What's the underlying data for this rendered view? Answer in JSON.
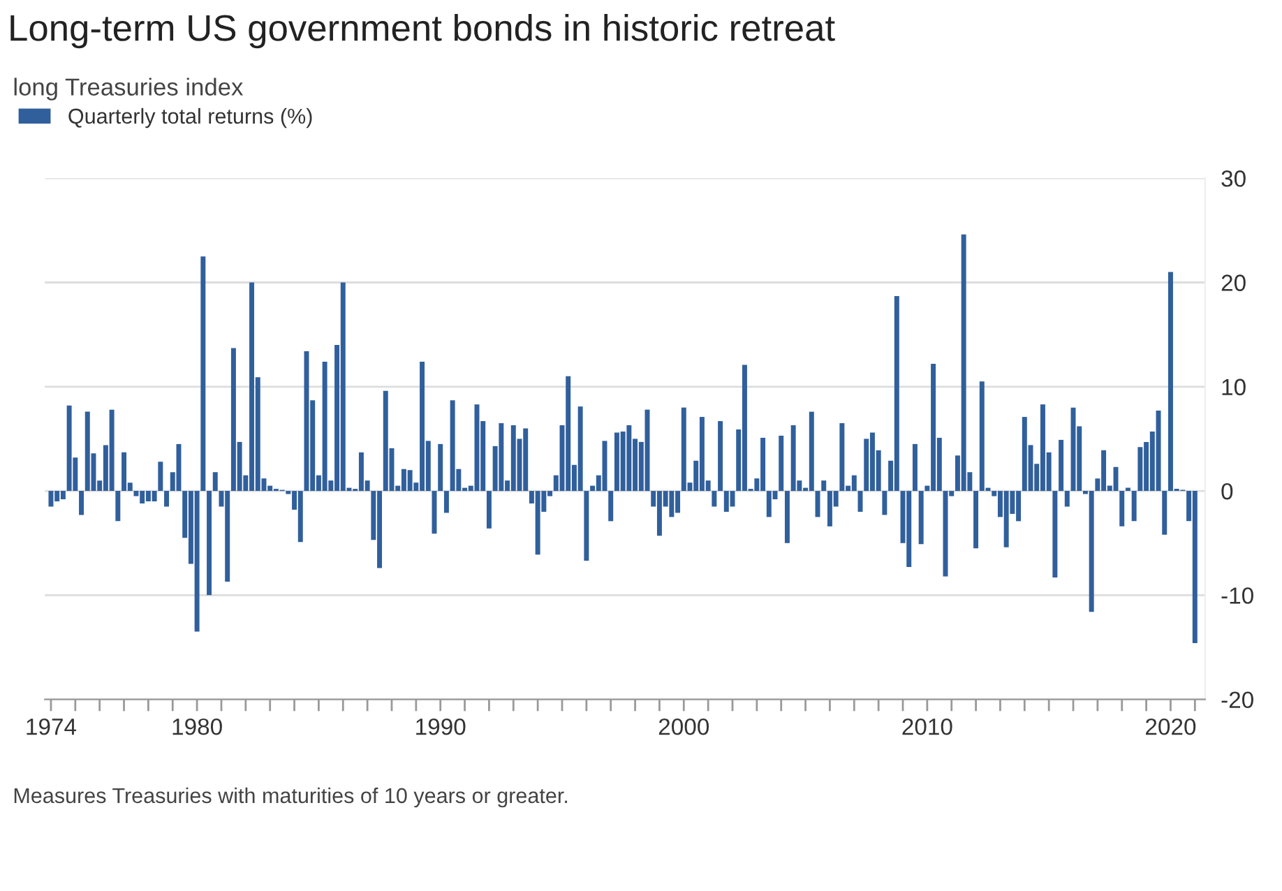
{
  "chart_data": {
    "type": "bar",
    "title": "Long-term US government bonds in historic retreat",
    "subtitle": "long Treasuries index",
    "annotations": [
      "Measures Treasuries with maturities of 10 years or greater."
    ],
    "x": [
      "1974-01",
      "1974-04",
      "1974-07",
      "1974-10",
      "1975-01",
      "1975-04",
      "1975-07",
      "1975-10",
      "1976-01",
      "1976-04",
      "1976-07",
      "1976-10",
      "1977-01",
      "1977-04",
      "1977-07",
      "1977-10",
      "1978-01",
      "1978-04",
      "1978-07",
      "1978-10",
      "1979-01",
      "1979-04",
      "1979-07",
      "1979-10",
      "1980-01",
      "1980-04",
      "1980-07",
      "1980-10",
      "1981-01",
      "1981-04",
      "1981-07",
      "1981-10",
      "1982-01",
      "1982-04",
      "1982-07",
      "1982-10",
      "1983-01",
      "1983-04",
      "1983-07",
      "1983-10",
      "1984-01",
      "1984-04",
      "1984-07",
      "1984-10",
      "1985-01",
      "1985-04",
      "1985-07",
      "1985-10",
      "1986-01",
      "1986-04",
      "1986-07",
      "1986-10",
      "1987-01",
      "1987-04",
      "1987-07",
      "1987-10",
      "1988-01",
      "1988-04",
      "1988-07",
      "1988-10",
      "1989-01",
      "1989-04",
      "1989-07",
      "1989-10",
      "1990-01",
      "1990-04",
      "1990-07",
      "1990-10",
      "1991-01",
      "1991-04",
      "1991-07",
      "1991-10",
      "1992-01",
      "1992-04",
      "1992-07",
      "1992-10",
      "1993-01",
      "1993-04",
      "1993-07",
      "1993-10",
      "1994-01",
      "1994-04",
      "1994-07",
      "1994-10",
      "1995-01",
      "1995-04",
      "1995-07",
      "1995-10",
      "1996-01",
      "1996-04",
      "1996-07",
      "1996-10",
      "1997-01",
      "1997-04",
      "1997-07",
      "1997-10",
      "1998-01",
      "1998-04",
      "1998-07",
      "1998-10",
      "1999-01",
      "1999-04",
      "1999-07",
      "1999-10",
      "2000-01",
      "2000-04",
      "2000-07",
      "2000-10",
      "2001-01",
      "2001-04",
      "2001-07",
      "2001-10",
      "2002-01",
      "2002-04",
      "2002-07",
      "2002-10",
      "2003-01",
      "2003-04",
      "2003-07",
      "2003-10",
      "2004-01",
      "2004-04",
      "2004-07",
      "2004-10",
      "2005-01",
      "2005-04",
      "2005-07",
      "2005-10",
      "2006-01",
      "2006-04",
      "2006-07",
      "2006-10",
      "2007-01",
      "2007-04",
      "2007-07",
      "2007-10",
      "2008-01",
      "2008-04",
      "2008-07",
      "2008-10",
      "2009-01",
      "2009-04",
      "2009-07",
      "2009-10",
      "2010-01",
      "2010-04",
      "2010-07",
      "2010-10",
      "2011-01",
      "2011-04",
      "2011-07",
      "2011-10",
      "2012-01",
      "2012-04",
      "2012-07",
      "2012-10",
      "2013-01",
      "2013-04",
      "2013-07",
      "2013-10",
      "2014-01",
      "2014-04",
      "2014-07",
      "2014-10",
      "2015-01",
      "2015-04",
      "2015-07",
      "2015-10",
      "2016-01",
      "2016-04",
      "2016-07",
      "2016-10",
      "2017-01",
      "2017-04",
      "2017-07",
      "2017-10",
      "2018-01",
      "2018-04",
      "2018-07",
      "2018-10",
      "2019-01",
      "2019-04",
      "2019-07",
      "2019-10",
      "2020-01",
      "2020-04",
      "2020-07",
      "2020-10",
      "2021-01"
    ],
    "series": [
      {
        "name": "Quarterly total returns (%)",
        "color": "#305f9c",
        "values": [
          -1.5,
          -1.0,
          -0.8,
          8.2,
          3.2,
          -2.3,
          7.6,
          3.6,
          1.0,
          4.4,
          7.8,
          -2.9,
          3.7,
          0.8,
          -0.5,
          -1.2,
          -1.0,
          -1.0,
          2.8,
          -1.5,
          1.8,
          4.5,
          -4.5,
          -7.0,
          -13.5,
          22.5,
          -10.0,
          1.8,
          -1.5,
          -8.7,
          13.7,
          4.7,
          1.5,
          20.0,
          10.9,
          1.2,
          0.5,
          0.2,
          0.1,
          -0.3,
          -1.8,
          -4.9,
          13.4,
          8.7,
          1.5,
          12.4,
          1.0,
          14.0,
          20.0,
          0.3,
          0.2,
          3.7,
          1.0,
          -4.7,
          -7.4,
          9.6,
          4.1,
          0.5,
          2.1,
          2.0,
          0.8,
          12.4,
          4.8,
          -4.1,
          4.5,
          -2.1,
          8.7,
          2.1,
          0.3,
          0.5,
          8.3,
          6.7,
          -3.6,
          4.3,
          6.5,
          1.0,
          6.3,
          5.0,
          6.0,
          -1.2,
          -6.1,
          -2.0,
          -0.5,
          1.5,
          6.3,
          11.0,
          2.5,
          8.1,
          -6.7,
          0.5,
          1.5,
          4.8,
          -2.9,
          5.6,
          5.7,
          6.3,
          5.0,
          4.7,
          7.8,
          -1.5,
          -4.3,
          -1.5,
          -2.5,
          -2.1,
          8.0,
          0.8,
          2.9,
          7.1,
          1.0,
          -1.5,
          6.7,
          -2.0,
          -1.5,
          5.9,
          12.1,
          0.2,
          1.2,
          5.1,
          -2.5,
          -0.8,
          5.3,
          -5.0,
          6.3,
          1.0,
          0.3,
          7.6,
          -2.5,
          1.0,
          -3.4,
          -1.5,
          6.5,
          0.5,
          1.5,
          -2.0,
          5.0,
          5.6,
          3.9,
          -2.3,
          2.9,
          18.7,
          -5.0,
          -7.3,
          4.5,
          -5.1,
          0.5,
          12.2,
          5.1,
          -8.2,
          -0.5,
          3.4,
          24.6,
          1.8,
          -5.5,
          10.5,
          0.3,
          -0.5,
          -2.5,
          -5.4,
          -2.2,
          -2.9,
          7.1,
          4.4,
          2.6,
          8.3,
          3.7,
          -8.3,
          4.9,
          -1.5,
          8.0,
          6.2,
          -0.3,
          -11.6,
          1.2,
          3.9,
          0.5,
          2.3,
          -3.4,
          0.3,
          -2.9,
          4.2,
          4.7,
          5.7,
          7.7,
          -4.2,
          21.0,
          0.2,
          0.1,
          -2.9,
          -14.6
        ]
      }
    ],
    "xlim": [
      "1973-10",
      "2021-06"
    ],
    "xticks": [
      {
        "value": "1974",
        "label": "1974"
      },
      {
        "value": "1975",
        "label": null
      },
      {
        "value": "1976",
        "label": null
      },
      {
        "value": "1977",
        "label": null
      },
      {
        "value": "1978",
        "label": null
      },
      {
        "value": "1979",
        "label": null
      },
      {
        "value": "1980",
        "label": "1980"
      },
      {
        "value": "1981",
        "label": null
      },
      {
        "value": "1982",
        "label": null
      },
      {
        "value": "1983",
        "label": null
      },
      {
        "value": "1984",
        "label": null
      },
      {
        "value": "1985",
        "label": null
      },
      {
        "value": "1986",
        "label": null
      },
      {
        "value": "1987",
        "label": null
      },
      {
        "value": "1988",
        "label": null
      },
      {
        "value": "1989",
        "label": null
      },
      {
        "value": "1990",
        "label": "1990"
      },
      {
        "value": "1991",
        "label": null
      },
      {
        "value": "1992",
        "label": null
      },
      {
        "value": "1993",
        "label": null
      },
      {
        "value": "1994",
        "label": null
      },
      {
        "value": "1995",
        "label": null
      },
      {
        "value": "1996",
        "label": null
      },
      {
        "value": "1997",
        "label": null
      },
      {
        "value": "1998",
        "label": null
      },
      {
        "value": "1999",
        "label": null
      },
      {
        "value": "2000",
        "label": "2000"
      },
      {
        "value": "2001",
        "label": null
      },
      {
        "value": "2002",
        "label": null
      },
      {
        "value": "2003",
        "label": null
      },
      {
        "value": "2004",
        "label": null
      },
      {
        "value": "2005",
        "label": null
      },
      {
        "value": "2006",
        "label": null
      },
      {
        "value": "2007",
        "label": null
      },
      {
        "value": "2008",
        "label": null
      },
      {
        "value": "2009",
        "label": null
      },
      {
        "value": "2010",
        "label": "2010"
      },
      {
        "value": "2011",
        "label": null
      },
      {
        "value": "2012",
        "label": null
      },
      {
        "value": "2013",
        "label": null
      },
      {
        "value": "2014",
        "label": null
      },
      {
        "value": "2015",
        "label": null
      },
      {
        "value": "2016",
        "label": null
      },
      {
        "value": "2017",
        "label": null
      },
      {
        "value": "2018",
        "label": null
      },
      {
        "value": "2019",
        "label": null
      },
      {
        "value": "2020",
        "label": "2020"
      },
      {
        "value": "2021",
        "label": null
      }
    ],
    "ylim": [
      -20,
      30
    ],
    "yticks": [
      -20,
      -10,
      0,
      10,
      20,
      30
    ],
    "grid": "y",
    "legend": "top left"
  }
}
